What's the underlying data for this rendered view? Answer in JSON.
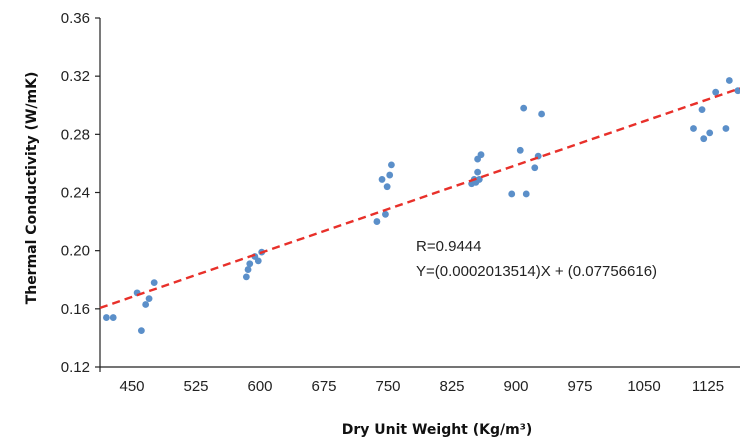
{
  "chart_data": {
    "type": "scatter",
    "title": "",
    "xlabel": "Dry Unit Weight (Kg/m³)",
    "ylabel": "Thermal Conductivity (W/mK)",
    "xlim": [
      412.5,
      1162.5
    ],
    "ylim": [
      0.12,
      0.36
    ],
    "xticks": [
      "450",
      "525",
      "600",
      "675",
      "750",
      "825",
      "900",
      "975",
      "1050",
      "1125"
    ],
    "xtick_values": [
      450,
      525,
      600,
      675,
      750,
      825,
      900,
      975,
      1050,
      1125
    ],
    "yticks": [
      "0.12",
      "0.16",
      "0.20",
      "0.24",
      "0.28",
      "0.32",
      "0.36"
    ],
    "ytick_values": [
      0.12,
      0.16,
      0.2,
      0.24,
      0.28,
      0.32,
      0.36
    ],
    "grid": false,
    "legend": "none",
    "point_color": "#5b8fc9",
    "trendline_color": "#e8302a",
    "trendline": {
      "slope": 0.0002013514,
      "intercept": 0.07756616
    },
    "annotations": [
      "R=0.9444",
      "Y=(0.0002013514)X + (0.07756616)"
    ],
    "points": [
      [
        420,
        0.154
      ],
      [
        428,
        0.154
      ],
      [
        456,
        0.171
      ],
      [
        461,
        0.145
      ],
      [
        466,
        0.163
      ],
      [
        470,
        0.167
      ],
      [
        476,
        0.178
      ],
      [
        584,
        0.182
      ],
      [
        586,
        0.187
      ],
      [
        588,
        0.191
      ],
      [
        594,
        0.196
      ],
      [
        598,
        0.193
      ],
      [
        602,
        0.199
      ],
      [
        737,
        0.22
      ],
      [
        743,
        0.249
      ],
      [
        747,
        0.225
      ],
      [
        749,
        0.244
      ],
      [
        752,
        0.252
      ],
      [
        754,
        0.259
      ],
      [
        848,
        0.246
      ],
      [
        851,
        0.249
      ],
      [
        853,
        0.247
      ],
      [
        855,
        0.254
      ],
      [
        855,
        0.263
      ],
      [
        857,
        0.249
      ],
      [
        859,
        0.266
      ],
      [
        895,
        0.239
      ],
      [
        905,
        0.269
      ],
      [
        909,
        0.298
      ],
      [
        912,
        0.239
      ],
      [
        922,
        0.257
      ],
      [
        926,
        0.265
      ],
      [
        930,
        0.294
      ],
      [
        1108,
        0.284
      ],
      [
        1118,
        0.297
      ],
      [
        1120,
        0.277
      ],
      [
        1127,
        0.281
      ],
      [
        1134,
        0.309
      ],
      [
        1146,
        0.284
      ],
      [
        1150,
        0.317
      ],
      [
        1160,
        0.31
      ]
    ]
  }
}
